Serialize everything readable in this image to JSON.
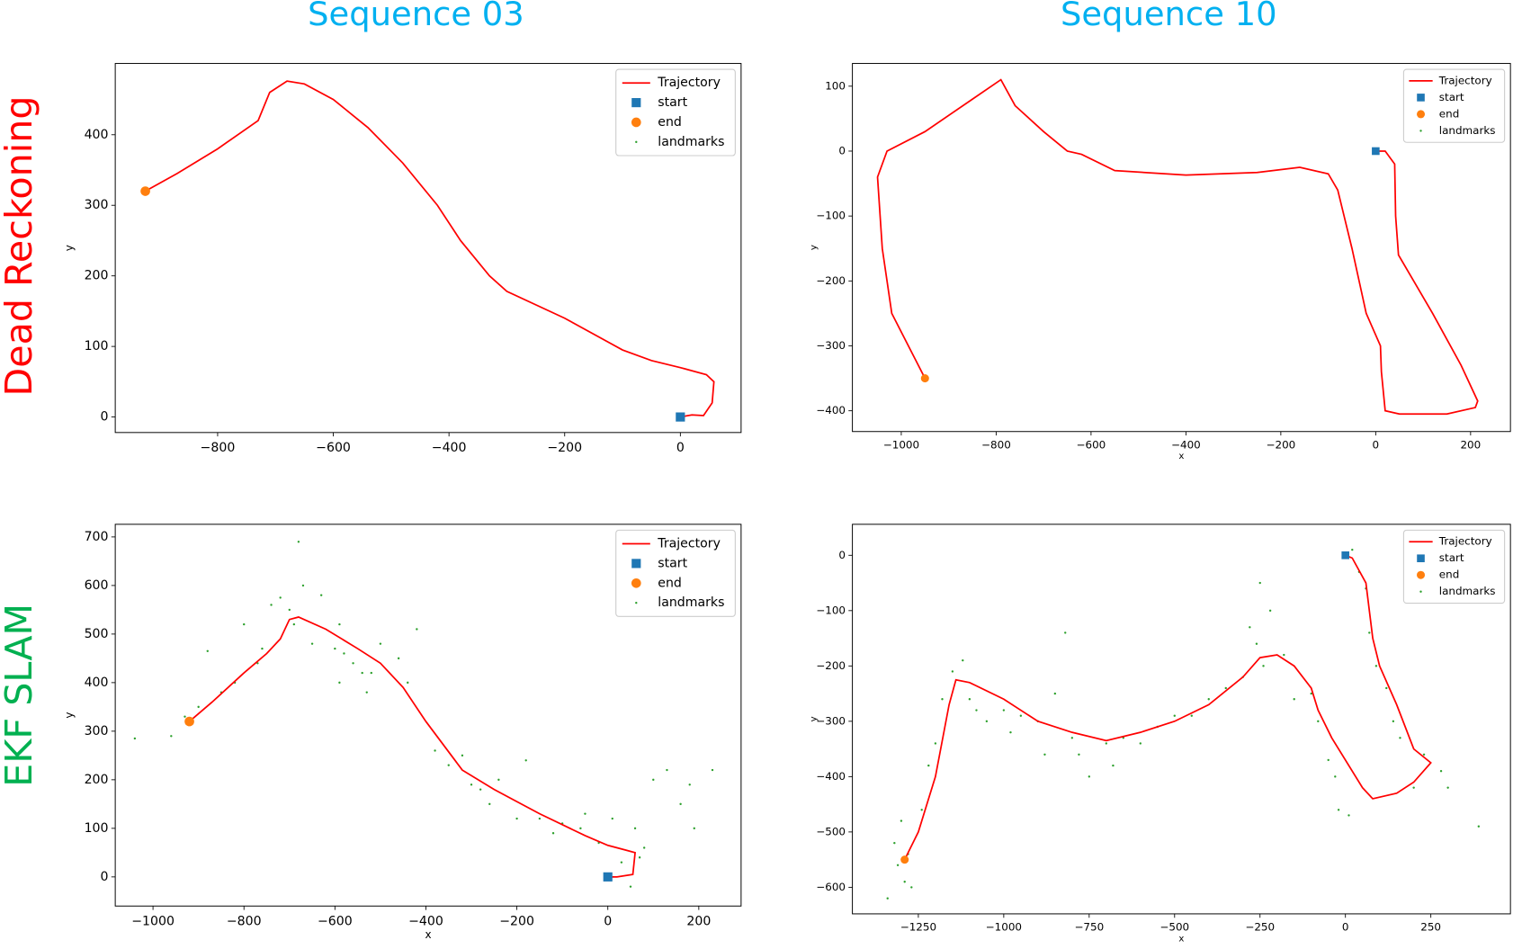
{
  "columns": [
    "Sequence 03",
    "Sequence 10"
  ],
  "rows": [
    "Dead Reckoning",
    "EKF SLAM"
  ],
  "chart_data": [
    {
      "type": "line",
      "ylabel": "y",
      "legend": "upper right",
      "xlim": [
        -977,
        105
      ],
      "ylim": [
        -22,
        501
      ],
      "xticks": [
        {
          "value": -800,
          "label": "−800"
        },
        {
          "value": -600,
          "label": "−600"
        },
        {
          "value": -400,
          "label": "−400"
        },
        {
          "value": -200,
          "label": "−200"
        },
        0
      ],
      "yticks": [
        0,
        100,
        200,
        300,
        400
      ],
      "series": [
        {
          "name": "Trajectory",
          "style": "line",
          "color": "#ff0000",
          "x": [
            0,
            20,
            40,
            55,
            58,
            45,
            0,
            -50,
            -100,
            -200,
            -300,
            -330,
            -380,
            -420,
            -480,
            -540,
            -600,
            -650,
            -680,
            -710,
            -730,
            -800,
            -870,
            -925
          ],
          "values": [
            0,
            3,
            2,
            20,
            50,
            60,
            70,
            80,
            95,
            140,
            178,
            200,
            250,
            300,
            360,
            410,
            450,
            472,
            476,
            460,
            420,
            380,
            345,
            320
          ]
        },
        {
          "name": "start",
          "style": "square",
          "color": "#1f77b4",
          "x": [
            0
          ],
          "values": [
            0
          ]
        },
        {
          "name": "end",
          "style": "circle",
          "color": "#ff7f0e",
          "x": [
            -925
          ],
          "values": [
            320
          ]
        },
        {
          "name": "landmarks",
          "style": "point",
          "color": "#2ca02c",
          "x": [],
          "values": []
        }
      ]
    },
    {
      "type": "line",
      "xlabel": "x",
      "ylabel": "y",
      "legend": "upper right",
      "xlim": [
        -1103,
        284
      ],
      "ylim": [
        -432,
        135
      ],
      "xticks": [
        {
          "value": -1000,
          "label": "−1000"
        },
        {
          "value": -800,
          "label": "−800"
        },
        {
          "value": -600,
          "label": "−600"
        },
        {
          "value": -400,
          "label": "−400"
        },
        {
          "value": -200,
          "label": "−200"
        },
        0,
        200
      ],
      "yticks": [
        {
          "value": -400,
          "label": "−400"
        },
        {
          "value": -300,
          "label": "−300"
        },
        {
          "value": -200,
          "label": "−200"
        },
        {
          "value": -100,
          "label": "−100"
        },
        0,
        100
      ],
      "series": [
        {
          "name": "Trajectory",
          "style": "line",
          "color": "#ff0000",
          "x": [
            0,
            20,
            40,
            42,
            48,
            80,
            120,
            180,
            215,
            210,
            150,
            50,
            20,
            12,
            10,
            -20,
            -50,
            -80,
            -100,
            -160,
            -250,
            -400,
            -550,
            -620,
            -650,
            -700,
            -760,
            -790,
            -850,
            -950,
            -1030,
            -1050,
            -1040,
            -1020,
            -950
          ],
          "values": [
            0,
            0,
            -20,
            -100,
            -160,
            -200,
            -250,
            -330,
            -385,
            -395,
            -405,
            -405,
            -400,
            -340,
            -300,
            -250,
            -150,
            -60,
            -35,
            -25,
            -33,
            -37,
            -30,
            -5,
            0,
            30,
            70,
            110,
            80,
            30,
            0,
            -40,
            -150,
            -250,
            -350
          ]
        },
        {
          "name": "start",
          "style": "square",
          "color": "#1f77b4",
          "x": [
            0
          ],
          "values": [
            0
          ]
        },
        {
          "name": "end",
          "style": "circle",
          "color": "#ff7f0e",
          "x": [
            -950
          ],
          "values": [
            -350
          ]
        },
        {
          "name": "landmarks",
          "style": "point",
          "color": "#2ca02c",
          "x": [],
          "values": []
        }
      ]
    },
    {
      "type": "line",
      "xlabel": "x",
      "ylabel": "y",
      "legend": "upper right",
      "xlim": [
        -1083,
        293
      ],
      "ylim": [
        -60,
        726
      ],
      "xticks": [
        {
          "value": -1000,
          "label": "−1000"
        },
        {
          "value": -800,
          "label": "−800"
        },
        {
          "value": -600,
          "label": "−600"
        },
        {
          "value": -400,
          "label": "−400"
        },
        {
          "value": -200,
          "label": "−200"
        },
        0,
        200
      ],
      "yticks": [
        0,
        100,
        200,
        300,
        400,
        500,
        600,
        700
      ],
      "series": [
        {
          "name": "Trajectory",
          "style": "line",
          "color": "#ff0000",
          "x": [
            0,
            20,
            55,
            60,
            40,
            0,
            -50,
            -150,
            -250,
            -320,
            -400,
            -450,
            -500,
            -550,
            -620,
            -680,
            -700,
            -720,
            -750,
            -800,
            -870,
            -920
          ],
          "values": [
            0,
            0,
            5,
            50,
            55,
            65,
            85,
            130,
            180,
            220,
            320,
            390,
            440,
            470,
            510,
            535,
            530,
            490,
            460,
            420,
            360,
            320
          ]
        },
        {
          "name": "start",
          "style": "square",
          "color": "#1f77b4",
          "x": [
            0
          ],
          "values": [
            0
          ]
        },
        {
          "name": "end",
          "style": "circle",
          "color": "#ff7f0e",
          "x": [
            -920
          ],
          "values": [
            320
          ]
        },
        {
          "name": "landmarks",
          "style": "point",
          "color": "#2ca02c",
          "x": [
            -1040,
            -960,
            -930,
            -900,
            -850,
            -880,
            -820,
            -800,
            -770,
            -760,
            -740,
            -720,
            -700,
            -690,
            -680,
            -670,
            -650,
            -630,
            -600,
            -590,
            -590,
            -580,
            -560,
            -540,
            -530,
            -520,
            -500,
            -460,
            -440,
            -420,
            -380,
            -350,
            -320,
            -300,
            -280,
            -260,
            -240,
            -200,
            -180,
            -150,
            -120,
            -100,
            -60,
            -50,
            -20,
            10,
            30,
            50,
            60,
            70,
            80,
            100,
            130,
            160,
            180,
            190,
            230
          ],
          "values": [
            285,
            290,
            330,
            350,
            380,
            465,
            400,
            520,
            440,
            470,
            560,
            575,
            550,
            520,
            690,
            600,
            480,
            580,
            470,
            520,
            400,
            460,
            440,
            420,
            380,
            420,
            480,
            450,
            400,
            510,
            260,
            230,
            250,
            190,
            180,
            150,
            200,
            120,
            240,
            120,
            90,
            110,
            100,
            130,
            70,
            120,
            30,
            -20,
            100,
            40,
            60,
            200,
            220,
            150,
            190,
            100,
            220
          ]
        }
      ]
    },
    {
      "type": "line",
      "xlabel": "x",
      "ylabel": "y",
      "legend": "upper right",
      "xlim": [
        -1443,
        483
      ],
      "ylim": [
        -648,
        56
      ],
      "xticks": [
        {
          "value": -1250,
          "label": "−1250"
        },
        {
          "value": -1000,
          "label": "−1000"
        },
        {
          "value": -750,
          "label": "−750"
        },
        {
          "value": -500,
          "label": "−500"
        },
        {
          "value": -250,
          "label": "−250"
        },
        0,
        250
      ],
      "yticks": [
        {
          "value": -600,
          "label": "−600"
        },
        {
          "value": -500,
          "label": "−500"
        },
        {
          "value": -400,
          "label": "−400"
        },
        {
          "value": -300,
          "label": "−300"
        },
        {
          "value": -200,
          "label": "−200"
        },
        {
          "value": -100,
          "label": "−100"
        },
        0
      ],
      "series": [
        {
          "name": "Trajectory",
          "style": "line",
          "color": "#ff0000",
          "x": [
            0,
            20,
            60,
            80,
            100,
            150,
            200,
            250,
            200,
            150,
            80,
            50,
            -40,
            -80,
            -100,
            -150,
            -200,
            -250,
            -300,
            -400,
            -500,
            -600,
            -700,
            -800,
            -900,
            -1000,
            -1100,
            -1140,
            -1160,
            -1200,
            -1250,
            -1290
          ],
          "values": [
            0,
            -5,
            -50,
            -150,
            -200,
            -270,
            -350,
            -375,
            -410,
            -430,
            -440,
            -420,
            -330,
            -280,
            -240,
            -200,
            -180,
            -185,
            -220,
            -270,
            -300,
            -320,
            -335,
            -320,
            -300,
            -260,
            -230,
            -225,
            -270,
            -400,
            -500,
            -550
          ]
        },
        {
          "name": "start",
          "style": "square",
          "color": "#1f77b4",
          "x": [
            0
          ],
          "values": [
            0
          ]
        },
        {
          "name": "end",
          "style": "circle",
          "color": "#ff7f0e",
          "x": [
            -1290
          ],
          "values": [
            -550
          ]
        },
        {
          "name": "landmarks",
          "style": "point",
          "color": "#2ca02c",
          "x": [
            -1340,
            -1320,
            -1310,
            -1300,
            -1290,
            -1280,
            -1270,
            -1240,
            -1220,
            -1200,
            -1180,
            -1150,
            -1120,
            -1100,
            -1080,
            -1050,
            -1000,
            -980,
            -950,
            -900,
            -880,
            -850,
            -820,
            -800,
            -780,
            -750,
            -700,
            -680,
            -650,
            -600,
            -550,
            -500,
            -450,
            -400,
            -350,
            -300,
            -280,
            -260,
            -240,
            -250,
            -220,
            -180,
            -150,
            -100,
            -80,
            -50,
            -30,
            -20,
            10,
            20,
            40,
            60,
            70,
            90,
            120,
            140,
            160,
            200,
            230,
            280,
            300,
            390
          ],
          "values": [
            -620,
            -520,
            -560,
            -480,
            -590,
            -540,
            -600,
            -460,
            -380,
            -340,
            -260,
            -210,
            -190,
            -260,
            -280,
            -300,
            -280,
            -320,
            -290,
            -300,
            -360,
            -250,
            -140,
            -330,
            -360,
            -400,
            -340,
            -380,
            -330,
            -340,
            -310,
            -290,
            -290,
            -260,
            -240,
            -220,
            -130,
            -160,
            -200,
            -50,
            -100,
            -180,
            -260,
            -250,
            -300,
            -370,
            -400,
            -460,
            -470,
            10,
            -30,
            -60,
            -140,
            -200,
            -240,
            -300,
            -330,
            -420,
            -360,
            -390,
            -420,
            -490
          ]
        }
      ]
    }
  ]
}
